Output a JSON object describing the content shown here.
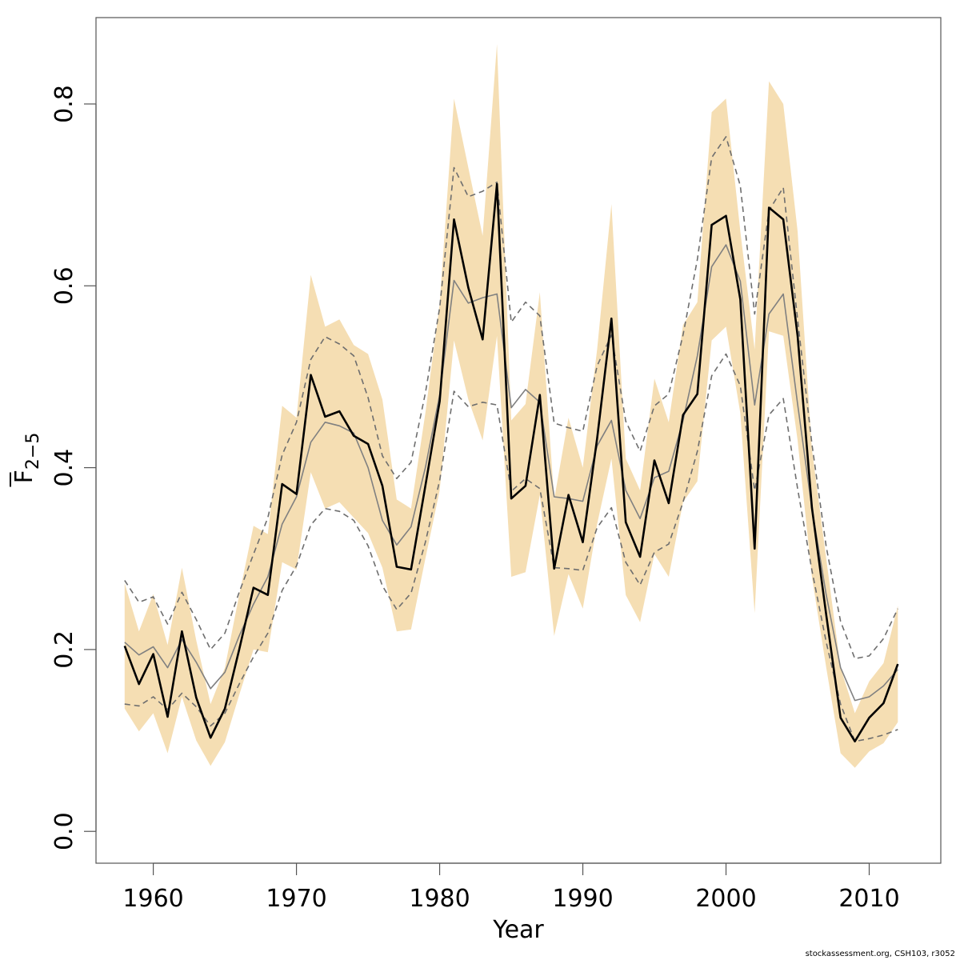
{
  "chart_data": {
    "type": "line",
    "title": "",
    "xlabel": "Year",
    "ylabel_main": "F",
    "ylabel_sub": "2−5",
    "xlim": [
      1956,
      2015
    ],
    "ylim": [
      -0.035,
      0.895
    ],
    "x_ticks": [
      1960,
      1970,
      1980,
      1990,
      2000,
      2010
    ],
    "x_tick_labels": [
      "1960",
      "1970",
      "1980",
      "1990",
      "2000",
      "2010"
    ],
    "y_ticks": [
      0.0,
      0.2,
      0.4,
      0.6,
      0.8
    ],
    "y_tick_labels": [
      "0.0",
      "0.2",
      "0.4",
      "0.6",
      "0.8"
    ],
    "grid": false,
    "colors": {
      "band": "#F5DEB3",
      "main_line": "#000000",
      "median_line": "#808080",
      "dashed_line": "#6E6E6E"
    },
    "x": [
      1958,
      1959,
      1960,
      1961,
      1962,
      1963,
      1964,
      1965,
      1966,
      1967,
      1968,
      1969,
      1970,
      1971,
      1972,
      1973,
      1974,
      1975,
      1976,
      1977,
      1978,
      1979,
      1980,
      1981,
      1982,
      1983,
      1984,
      1985,
      1986,
      1987,
      1988,
      1989,
      1990,
      1991,
      1992,
      1993,
      1994,
      1995,
      1996,
      1997,
      1998,
      1999,
      2000,
      2001,
      2002,
      2003,
      2004,
      2005,
      2006,
      2007,
      2008,
      2009,
      2010,
      2011,
      2012
    ],
    "band_upper": [
      0.273,
      0.22,
      0.261,
      0.205,
      0.29,
      0.21,
      0.14,
      0.18,
      0.26,
      0.336,
      0.327,
      0.468,
      0.455,
      0.612,
      0.555,
      0.563,
      0.535,
      0.525,
      0.475,
      0.365,
      0.355,
      0.46,
      0.58,
      0.806,
      0.73,
      0.655,
      0.866,
      0.452,
      0.47,
      0.593,
      0.365,
      0.455,
      0.4,
      0.53,
      0.69,
      0.41,
      0.375,
      0.498,
      0.45,
      0.557,
      0.582,
      0.791,
      0.806,
      0.66,
      0.53,
      0.825,
      0.8,
      0.66,
      0.42,
      0.3,
      0.18,
      0.13,
      0.165,
      0.185,
      0.248
    ],
    "band_lower": [
      0.135,
      0.11,
      0.13,
      0.086,
      0.148,
      0.1,
      0.072,
      0.098,
      0.15,
      0.2,
      0.197,
      0.296,
      0.288,
      0.395,
      0.355,
      0.362,
      0.345,
      0.328,
      0.29,
      0.22,
      0.222,
      0.3,
      0.375,
      0.54,
      0.475,
      0.43,
      0.545,
      0.28,
      0.285,
      0.37,
      0.215,
      0.283,
      0.245,
      0.338,
      0.41,
      0.26,
      0.23,
      0.305,
      0.28,
      0.362,
      0.385,
      0.54,
      0.555,
      0.46,
      0.24,
      0.55,
      0.545,
      0.43,
      0.28,
      0.18,
      0.086,
      0.07,
      0.088,
      0.097,
      0.12
    ],
    "series": [
      {
        "values": [
          0.204,
          0.162,
          0.195,
          0.126,
          0.22,
          0.147,
          0.103,
          0.135,
          0.2,
          0.268,
          0.26,
          0.382,
          0.371,
          0.502,
          0.456,
          0.462,
          0.435,
          0.426,
          0.38,
          0.291,
          0.288,
          0.38,
          0.473,
          0.673,
          0.598,
          0.541,
          0.712,
          0.366,
          0.38,
          0.48,
          0.289,
          0.37,
          0.318,
          0.432,
          0.564,
          0.34,
          0.302,
          0.408,
          0.361,
          0.458,
          0.481,
          0.667,
          0.677,
          0.585,
          0.311,
          0.686,
          0.673,
          0.545,
          0.356,
          0.238,
          0.125,
          0.099,
          0.125,
          0.141,
          0.184
        ]
      },
      {
        "values": [
          0.208,
          0.194,
          0.203,
          0.18,
          0.211,
          0.186,
          0.157,
          0.175,
          0.215,
          0.25,
          0.28,
          0.338,
          0.368,
          0.428,
          0.45,
          0.446,
          0.438,
          0.4,
          0.342,
          0.315,
          0.335,
          0.4,
          0.48,
          0.606,
          0.581,
          0.587,
          0.591,
          0.466,
          0.486,
          0.472,
          0.368,
          0.366,
          0.363,
          0.424,
          0.452,
          0.375,
          0.344,
          0.389,
          0.396,
          0.452,
          0.523,
          0.621,
          0.645,
          0.605,
          0.469,
          0.569,
          0.591,
          0.47,
          0.355,
          0.26,
          0.18,
          0.144,
          0.148,
          0.16,
          0.178
        ]
      },
      {
        "values": [
          0.276,
          0.252,
          0.258,
          0.228,
          0.263,
          0.233,
          0.2,
          0.218,
          0.263,
          0.305,
          0.345,
          0.414,
          0.45,
          0.519,
          0.544,
          0.536,
          0.523,
          0.477,
          0.413,
          0.388,
          0.406,
          0.482,
          0.576,
          0.73,
          0.698,
          0.704,
          0.714,
          0.56,
          0.582,
          0.567,
          0.449,
          0.444,
          0.44,
          0.512,
          0.546,
          0.451,
          0.418,
          0.468,
          0.481,
          0.546,
          0.629,
          0.741,
          0.764,
          0.71,
          0.569,
          0.683,
          0.708,
          0.563,
          0.426,
          0.313,
          0.231,
          0.19,
          0.193,
          0.212,
          0.245
        ]
      },
      {
        "values": [
          0.14,
          0.138,
          0.148,
          0.134,
          0.152,
          0.137,
          0.116,
          0.13,
          0.162,
          0.192,
          0.218,
          0.265,
          0.292,
          0.337,
          0.355,
          0.352,
          0.342,
          0.314,
          0.27,
          0.244,
          0.262,
          0.318,
          0.386,
          0.484,
          0.467,
          0.472,
          0.469,
          0.374,
          0.388,
          0.377,
          0.29,
          0.289,
          0.287,
          0.334,
          0.356,
          0.296,
          0.271,
          0.307,
          0.316,
          0.362,
          0.418,
          0.501,
          0.525,
          0.49,
          0.375,
          0.458,
          0.476,
          0.377,
          0.287,
          0.208,
          0.14,
          0.099,
          0.102,
          0.106,
          0.112
        ]
      }
    ]
  },
  "footer": {
    "credit": "stockassessment.org, CSH103, r3052"
  }
}
